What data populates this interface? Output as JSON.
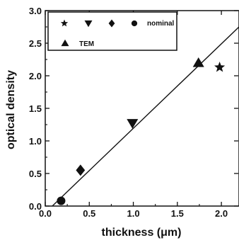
{
  "chart_data": {
    "type": "scatter",
    "xlabel": "thickness (μm)",
    "ylabel": "optical density",
    "xlim": [
      0.0,
      2.2
    ],
    "ylim": [
      0.0,
      3.0
    ],
    "x_ticks": [
      "0.0",
      "0.5",
      "1.0",
      "1.5",
      "2.0"
    ],
    "y_ticks": [
      "0.0",
      "0.5",
      "1.0",
      "1.5",
      "2.0",
      "2.5",
      "3.0"
    ],
    "grid": false,
    "legend_placement": "top-left",
    "legend": {
      "nominal_label": "nominal",
      "tem_label": "TEM"
    },
    "series": [
      {
        "marker": "circle",
        "group": "nominal",
        "x": [
          0.18
        ],
        "y": [
          0.08
        ]
      },
      {
        "marker": "diamond",
        "group": "nominal",
        "x": [
          0.4
        ],
        "y": [
          0.55
        ]
      },
      {
        "marker": "triangle-down",
        "group": "nominal",
        "x": [
          0.99
        ],
        "y": [
          1.27
        ]
      },
      {
        "marker": "star",
        "group": "nominal",
        "x": [
          1.98
        ],
        "y": [
          2.13
        ]
      },
      {
        "marker": "triangle-up",
        "group": "TEM",
        "x": [
          1.74
        ],
        "y": [
          2.2
        ]
      }
    ],
    "fit_line": {
      "x": [
        0.08,
        2.2
      ],
      "y": [
        0.0,
        2.75
      ]
    }
  }
}
